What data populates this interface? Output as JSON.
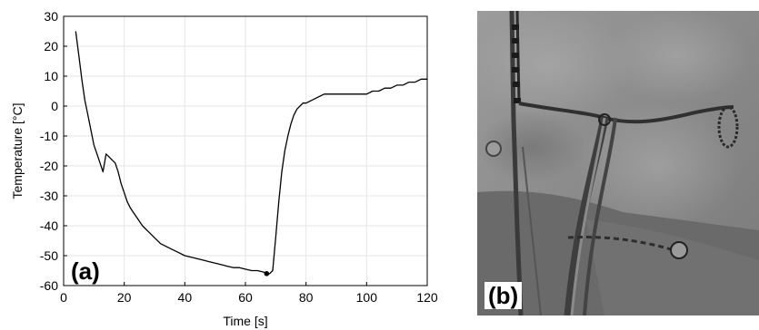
{
  "chart_data": {
    "type": "line",
    "panel_label": "(a)",
    "xlabel": "Time [s]",
    "ylabel": "Temperature [°C]",
    "xlim": [
      0,
      120
    ],
    "ylim": [
      -60,
      30
    ],
    "xticks": [
      0,
      20,
      40,
      60,
      80,
      100,
      120
    ],
    "yticks": [
      30,
      20,
      10,
      0,
      -10,
      -20,
      -30,
      -40,
      -50,
      -60
    ],
    "grid": true,
    "line_color": "#000000",
    "series": [
      {
        "x": [
          4,
          5,
          6,
          7,
          8,
          9,
          10,
          11,
          12,
          13,
          14,
          15,
          16,
          17,
          18,
          19,
          20,
          21,
          22,
          24,
          26,
          28,
          30,
          32,
          34,
          36,
          38,
          40,
          42,
          44,
          46,
          48,
          50,
          52,
          54,
          56,
          58,
          60,
          62,
          64,
          66,
          67,
          68,
          69,
          70,
          71,
          72,
          73,
          74,
          75,
          76,
          77,
          78,
          79,
          80,
          82,
          84,
          86,
          88,
          90,
          92,
          94,
          96,
          98,
          100,
          102,
          104,
          106,
          108,
          110,
          112,
          114,
          116,
          118,
          120
        ],
        "y": [
          25,
          17,
          9,
          2,
          -3,
          -8,
          -13,
          -16,
          -19,
          -22,
          -16,
          -17,
          -18,
          -19,
          -22,
          -26,
          -29,
          -32,
          -34,
          -37,
          -40,
          -42,
          -44,
          -46,
          -47,
          -48,
          -49,
          -50,
          -50.5,
          -51,
          -51.5,
          -52,
          -52.5,
          -53,
          -53.5,
          -54,
          -54,
          -54.5,
          -55,
          -55,
          -55.5,
          -56,
          -56,
          -55,
          -44,
          -32,
          -22,
          -15,
          -10,
          -6,
          -3,
          -1,
          0,
          1,
          1,
          2,
          3,
          4,
          4,
          4,
          4,
          4,
          4,
          4,
          4,
          5,
          5,
          6,
          6,
          7,
          7,
          8,
          8,
          9,
          9
        ]
      }
    ],
    "marker": {
      "x": 67,
      "y": -56
    }
  },
  "panel_b": {
    "label": "(b)"
  }
}
